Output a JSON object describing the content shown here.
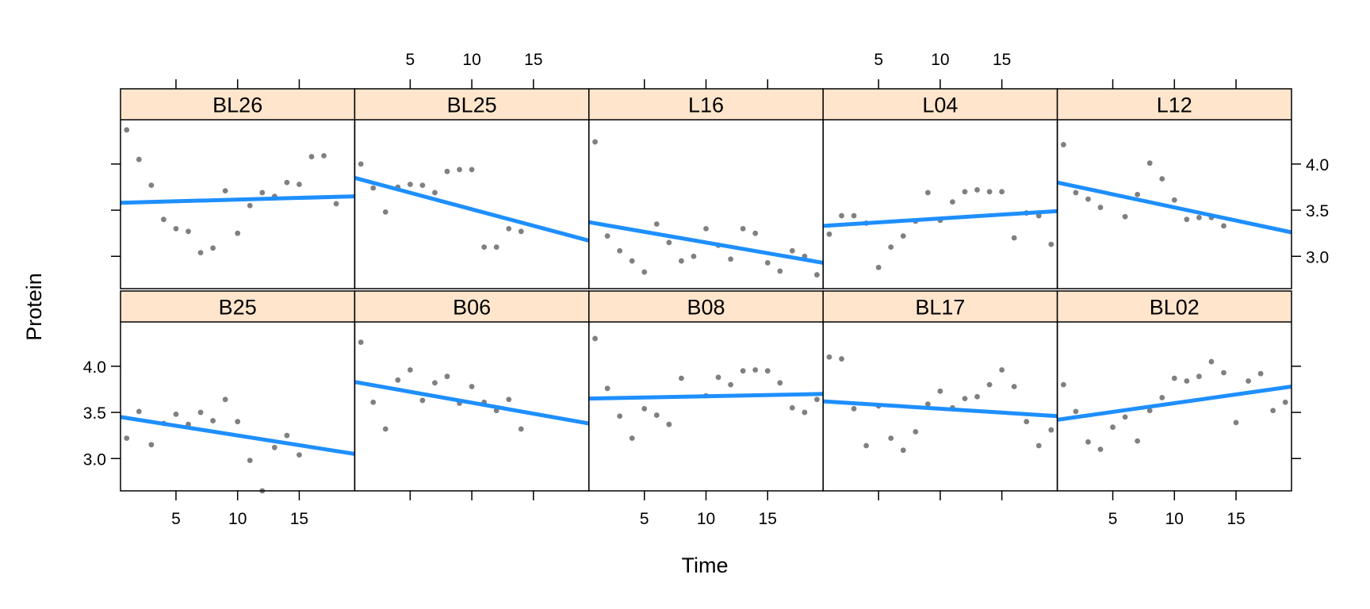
{
  "chart_data": {
    "type": "scatter",
    "layout": "lattice 5x2",
    "xlabel": "Time",
    "ylabel": "Protein",
    "xlim": [
      0.5,
      19.5
    ],
    "ylim": [
      2.65,
      4.48
    ],
    "x_ticks": [
      5,
      10,
      15
    ],
    "x_tick_labels": [
      "5",
      "10",
      "15"
    ],
    "y_ticks": [
      3.0,
      3.5,
      4.0
    ],
    "y_tick_labels": [
      "3.0",
      "3.5",
      "4.0"
    ],
    "point_color": "#808080",
    "line_color": "#1e8fff",
    "strip_color": "#ffe5cc",
    "panels": [
      {
        "name": "BL26",
        "row": 0,
        "col": 0,
        "x": [
          1,
          2,
          3,
          4,
          5,
          6,
          7,
          8,
          9,
          10,
          11,
          12,
          13,
          14,
          15,
          16,
          17,
          18
        ],
        "y": [
          4.37,
          4.05,
          3.77,
          3.4,
          3.3,
          3.27,
          3.04,
          3.09,
          3.71,
          3.25,
          3.55,
          3.69,
          3.65,
          3.8,
          3.78,
          4.08,
          4.09,
          3.57
        ],
        "fit": [
          3.58,
          3.65
        ]
      },
      {
        "name": "BL25",
        "row": 0,
        "col": 1,
        "x": [
          1,
          2,
          3,
          4,
          5,
          6,
          7,
          8,
          9,
          10,
          11,
          12,
          13,
          14
        ],
        "y": [
          4.0,
          3.74,
          3.48,
          3.75,
          3.78,
          3.77,
          3.69,
          3.92,
          3.94,
          3.94,
          3.1,
          3.1,
          3.3,
          3.27
        ],
        "fit": [
          3.85,
          3.17
        ]
      },
      {
        "name": "L16",
        "row": 0,
        "col": 2,
        "x": [
          1,
          2,
          3,
          4,
          5,
          6,
          7,
          8,
          9,
          10,
          11,
          12,
          13,
          14,
          15,
          16,
          17,
          18,
          19
        ],
        "y": [
          4.24,
          3.22,
          3.06,
          2.95,
          2.83,
          3.35,
          3.15,
          2.95,
          3.0,
          3.3,
          3.12,
          2.97,
          3.3,
          3.25,
          2.93,
          2.84,
          3.06,
          3.0,
          2.8
        ],
        "fit": [
          3.37,
          2.93
        ]
      },
      {
        "name": "L04",
        "row": 0,
        "col": 3,
        "x": [
          1,
          2,
          3,
          4,
          5,
          6,
          7,
          8,
          9,
          10,
          11,
          12,
          13,
          14,
          15,
          16,
          17,
          18,
          19
        ],
        "y": [
          3.24,
          3.44,
          3.44,
          3.36,
          2.88,
          3.1,
          3.22,
          3.38,
          3.69,
          3.39,
          3.59,
          3.7,
          3.72,
          3.7,
          3.7,
          3.2,
          3.47,
          3.44,
          3.13
        ],
        "fit": [
          3.33,
          3.49
        ]
      },
      {
        "name": "L12",
        "row": 0,
        "col": 4,
        "x": [
          1,
          2,
          3,
          4,
          6,
          7,
          8,
          9,
          10,
          11,
          12,
          13,
          14
        ],
        "y": [
          4.21,
          3.69,
          3.62,
          3.53,
          3.43,
          3.67,
          4.01,
          3.84,
          3.61,
          3.4,
          3.42,
          3.42,
          3.33
        ],
        "fit": [
          3.8,
          3.26
        ]
      },
      {
        "name": "B25",
        "row": 1,
        "col": 0,
        "x": [
          1,
          2,
          3,
          4,
          5,
          6,
          7,
          8,
          9,
          10,
          11,
          12,
          13,
          14,
          15
        ],
        "y": [
          3.22,
          3.51,
          3.15,
          3.38,
          3.48,
          3.37,
          3.5,
          3.41,
          3.64,
          3.4,
          2.98,
          2.65,
          3.12,
          3.25,
          3.04
        ],
        "fit": [
          3.45,
          3.05
        ]
      },
      {
        "name": "B06",
        "row": 1,
        "col": 1,
        "x": [
          1,
          2,
          3,
          4,
          5,
          6,
          7,
          8,
          9,
          10,
          11,
          12,
          13,
          14
        ],
        "y": [
          4.26,
          3.61,
          3.32,
          3.85,
          3.96,
          3.63,
          3.82,
          3.89,
          3.6,
          3.78,
          3.61,
          3.52,
          3.64,
          3.32
        ],
        "fit": [
          3.83,
          3.38
        ]
      },
      {
        "name": "B08",
        "row": 1,
        "col": 2,
        "x": [
          1,
          2,
          3,
          4,
          5,
          6,
          7,
          8,
          10,
          11,
          12,
          13,
          14,
          15,
          16,
          17,
          18,
          19
        ],
        "y": [
          4.3,
          3.76,
          3.46,
          3.22,
          3.54,
          3.47,
          3.37,
          3.87,
          3.68,
          3.88,
          3.8,
          3.95,
          3.96,
          3.95,
          3.82,
          3.55,
          3.5,
          3.64
        ],
        "fit": [
          3.65,
          3.7
        ]
      },
      {
        "name": "BL17",
        "row": 1,
        "col": 3,
        "x": [
          1,
          2,
          3,
          4,
          5,
          6,
          7,
          8,
          9,
          10,
          11,
          12,
          13,
          14,
          15,
          16,
          17,
          18,
          19
        ],
        "y": [
          4.1,
          4.08,
          3.54,
          3.14,
          3.57,
          3.22,
          3.09,
          3.29,
          3.59,
          3.73,
          3.55,
          3.65,
          3.67,
          3.8,
          3.96,
          3.78,
          3.4,
          3.14,
          3.31
        ],
        "fit": [
          3.62,
          3.46
        ]
      },
      {
        "name": "BL02",
        "row": 1,
        "col": 4,
        "x": [
          1,
          2,
          3,
          4,
          5,
          6,
          7,
          8,
          9,
          10,
          11,
          12,
          13,
          14,
          15,
          16,
          17,
          18,
          19
        ],
        "y": [
          3.8,
          3.51,
          3.18,
          3.1,
          3.34,
          3.45,
          3.19,
          3.52,
          3.66,
          3.87,
          3.84,
          3.89,
          4.05,
          3.93,
          3.39,
          3.84,
          3.92,
          3.52,
          3.61
        ],
        "fit": [
          3.42,
          3.78
        ]
      }
    ]
  }
}
